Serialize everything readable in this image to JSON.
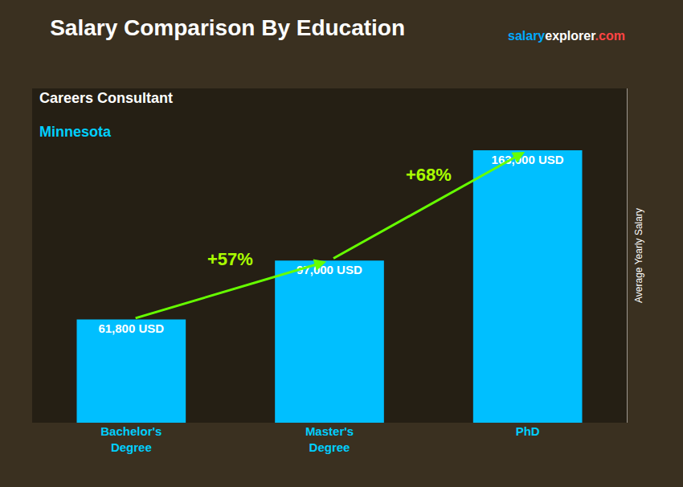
{
  "chart_data": {
    "type": "bar",
    "title": "Salary Comparison By Education",
    "subtitle": [
      "Careers Consultant",
      "Minnesota"
    ],
    "ylabel": "Average Yearly Salary",
    "categories": [
      "Bachelor's\nDegree",
      "Master's\nDegree",
      "PhD"
    ],
    "values": [
      61800,
      97000,
      163000
    ],
    "value_labels": [
      "61,800 USD",
      "97,000 USD",
      "163,000 USD"
    ],
    "data_labels": true,
    "color": "#00BFFF",
    "ylim": [
      0,
      200000
    ],
    "tick_labels": "x",
    "grid": false,
    "annotations": [
      "+57%",
      "+68%",
      "salary",
      "explorer",
      ".com"
    ]
  }
}
